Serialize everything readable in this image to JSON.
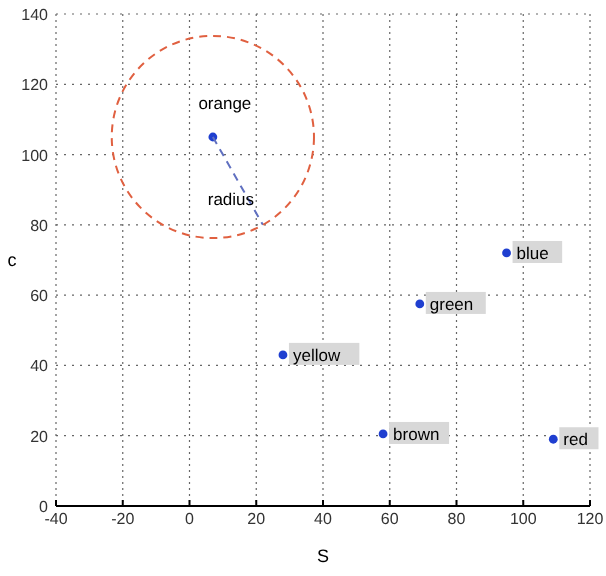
{
  "chart_data": {
    "type": "scatter",
    "xlabel": "S",
    "ylabel": "c",
    "xlim": [
      -40,
      120
    ],
    "xticks": [
      -40,
      -20,
      0,
      20,
      40,
      60,
      80,
      100,
      120
    ],
    "ylim": [
      0,
      140
    ],
    "yticks": [
      0,
      20,
      40,
      60,
      80,
      100,
      120,
      140
    ],
    "grid": true,
    "marker": "circle",
    "series": [
      {
        "color": "#1f3fd0",
        "x": [
          7,
          95,
          69,
          28,
          58,
          109
        ],
        "values": [
          105,
          72,
          57.5,
          43,
          20.5,
          19
        ]
      },
      {
        "type": "line",
        "color": "#6070c0",
        "line_style": "dashed",
        "x": [
          7,
          22
        ],
        "values": [
          105,
          80
        ]
      }
    ],
    "annotations": [
      {
        "text": "orange",
        "x": 7,
        "y": 105
      },
      {
        "text": "radius",
        "x": 22,
        "y": 80
      },
      {
        "text": "blue",
        "x": 95,
        "y": 72
      },
      {
        "text": "green",
        "x": 69,
        "y": 57.5
      },
      {
        "text": "yellow",
        "x": 28,
        "y": 43
      },
      {
        "text": "brown",
        "x": 58,
        "y": 20.5
      },
      {
        "text": "red",
        "x": 109,
        "y": 19
      }
    ]
  }
}
